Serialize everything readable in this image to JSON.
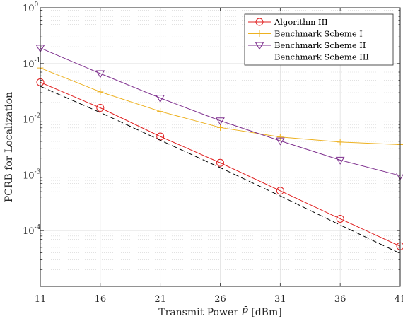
{
  "chart_data": {
    "type": "line",
    "title": "",
    "xlabel_prefix": "Transmit Power ",
    "xlabel_symbol": "P̄",
    "xlabel_suffix": " [dBm]",
    "ylabel": "PCRB for Localization",
    "x": [
      11,
      16,
      21,
      26,
      31,
      36,
      41
    ],
    "xlim": [
      11,
      41
    ],
    "ylim": [
      1e-05,
      1
    ],
    "yscale": "log",
    "x_ticks": [
      "11",
      "16",
      "21",
      "26",
      "31",
      "36",
      "41"
    ],
    "y_ticks": [
      {
        "base": "10",
        "exp": "0",
        "value": 1
      },
      {
        "base": "10",
        "exp": "-1",
        "value": 0.1
      },
      {
        "base": "10",
        "exp": "-2",
        "value": 0.01
      },
      {
        "base": "10",
        "exp": "-3",
        "value": 0.001
      },
      {
        "base": "10",
        "exp": "-4",
        "value": 0.0001
      }
    ],
    "grid": true,
    "legend_position": "top-right",
    "series": [
      {
        "name": "Algorithm III",
        "color": "#e02020",
        "marker": "circle",
        "dash": "solid",
        "values": [
          0.046,
          0.016,
          0.0049,
          0.00165,
          0.00052,
          0.000163,
          5.25e-05
        ]
      },
      {
        "name": "Benchmark Scheme I",
        "color": "#edb120",
        "marker": "plus",
        "dash": "solid",
        "values": [
          0.083,
          0.031,
          0.0138,
          0.0071,
          0.0048,
          0.0039,
          0.0035
        ]
      },
      {
        "name": "Benchmark Scheme II",
        "color": "#7e2f8e",
        "marker": "triangle-down",
        "dash": "solid",
        "values": [
          0.19,
          0.066,
          0.024,
          0.0094,
          0.0041,
          0.00185,
          0.00097
        ]
      },
      {
        "name": "Benchmark Scheme III",
        "color": "#000000",
        "marker": "none",
        "dash": "dashed",
        "values": [
          0.039,
          0.0132,
          0.0042,
          0.00135,
          0.00042,
          0.000126,
          3.9e-05
        ]
      }
    ]
  }
}
